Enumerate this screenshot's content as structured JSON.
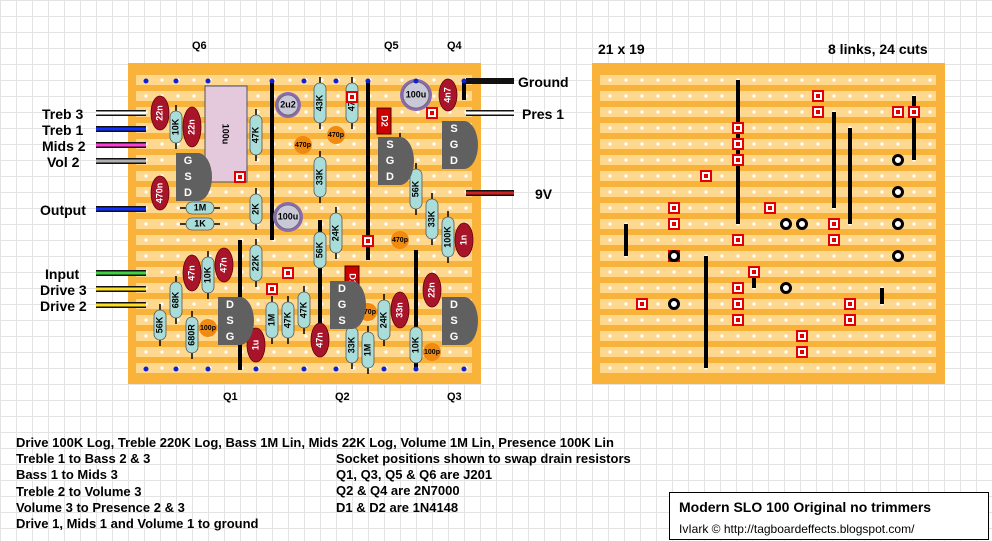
{
  "title": "Modern SLO 100 Original no trimmers",
  "credit": "IvIark © http://tagboardeffects.blogspot.com/",
  "board_size": "21 x 19",
  "board_stats": "8 links, 24 cuts",
  "colors": {
    "board": "#f9b23a",
    "strip": "#ffd890",
    "hole": "#ffffff",
    "link": "#000000",
    "cut": "#e00000",
    "resistor": "#a8ddd9",
    "film_cap": "#a8152a",
    "electrolytic": "#c8c8d8",
    "ic": "#e4c8dc",
    "transistor": "#606060"
  },
  "transistors": [
    "Q1",
    "Q2",
    "Q3",
    "Q4",
    "Q5",
    "Q6"
  ],
  "transistor_pins": {
    "q6": "G S D",
    "q5": "S G D",
    "q4": "S G D",
    "q1": "D S G",
    "q2": "D G S",
    "q3": "D S G"
  },
  "offboard": {
    "left": [
      "Treb 3",
      "Treb 1",
      "Mids 2",
      "Vol 2",
      "Output",
      "Input",
      "Drive 3",
      "Drive 2"
    ],
    "right": [
      "Ground",
      "Pres 1",
      "9V"
    ]
  },
  "resistors": [
    "10K",
    "1M",
    "1K",
    "47K",
    "2K",
    "22K",
    "33K",
    "43K",
    "47K",
    "33K",
    "24K",
    "56K",
    "56K",
    "33K",
    "100K",
    "68K",
    "56K",
    "10K",
    "680R",
    "1M",
    "47K",
    "47K",
    "24K",
    "1M",
    "33K",
    "10K"
  ],
  "capacitors": [
    "22n",
    "22n",
    "470n",
    "47n",
    "47n",
    "1u",
    "47n",
    "33n",
    "22n",
    "4n7",
    "1n",
    "100u",
    "2u2",
    "100u",
    "100u",
    "470p",
    "470p",
    "470p",
    "470p",
    "100p",
    "100p"
  ],
  "diodes": [
    "D1",
    "D2"
  ],
  "notes_left": [
    "Drive 100K Log, Treble 220K Log, Bass 1M Lin, Mids 22K Log, Volume 1M Lin, Presence 100K Lin",
    "Treble 1 to Bass 2 & 3",
    "Bass 1 to Mids 3",
    "Treble 2 to Volume 3",
    "Volume 3 to Presence 2 & 3",
    "Drive 1, Mids 1 and Volume 1 to ground"
  ],
  "notes_right": [
    "Socket positions shown to swap drain resistors",
    "Q1, Q3, Q5 & Q6 are J201",
    "Q2 & Q4 are 2N7000",
    "D1 & D2 are 1N4148"
  ]
}
